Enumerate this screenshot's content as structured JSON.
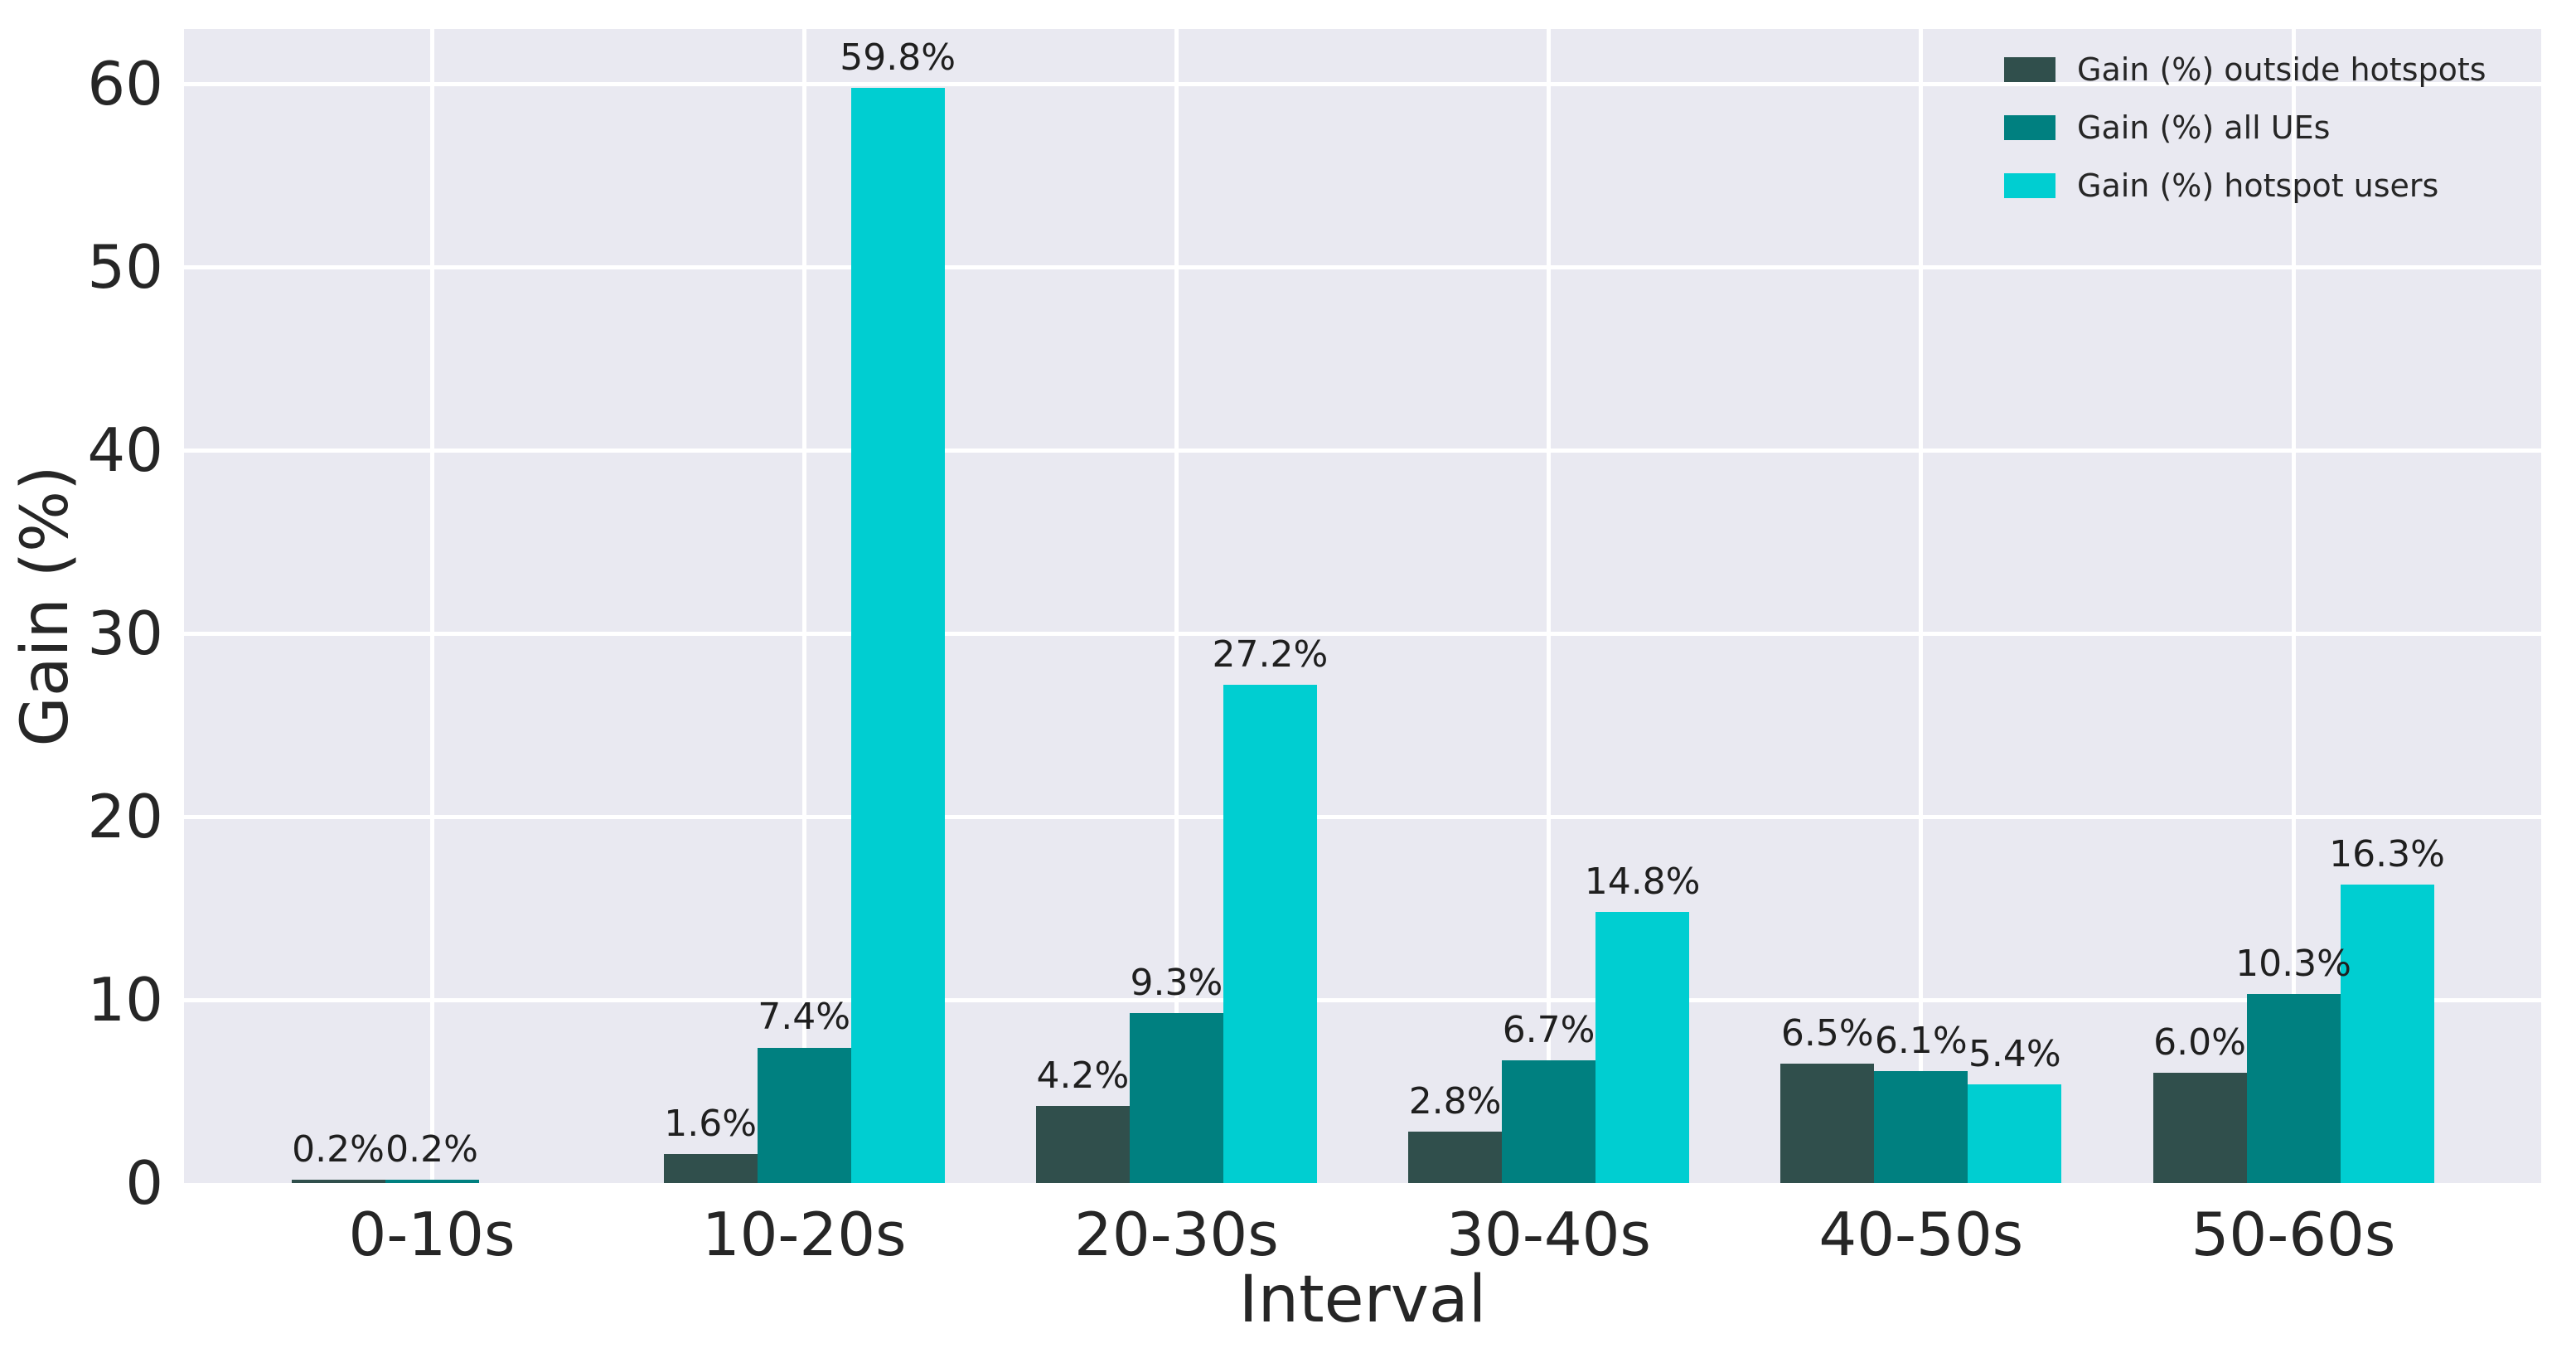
{
  "chart_data": {
    "type": "bar",
    "title": "",
    "xlabel": "Interval",
    "ylabel": "Gain (%)",
    "categories": [
      "0-10s",
      "10-20s",
      "20-30s",
      "30-40s",
      "40-50s",
      "50-60s"
    ],
    "series": [
      {
        "name": "Gain (%) outside hotspots",
        "color": "#304F4C",
        "values": [
          0.2,
          1.6,
          4.2,
          2.8,
          6.5,
          6.0
        ],
        "labels": [
          "0.2%",
          "1.6%",
          "4.2%",
          "2.8%",
          "6.5%",
          "6.0%"
        ]
      },
      {
        "name": "Gain (%) all UEs",
        "color": "#008080",
        "values": [
          0.2,
          7.4,
          9.3,
          6.7,
          6.1,
          10.3
        ],
        "labels": [
          "0.2%",
          "7.4%",
          "9.3%",
          "6.7%",
          "6.1%",
          "10.3%"
        ]
      },
      {
        "name": "Gain (%) hotspot users",
        "color": "#00CED1",
        "values": [
          null,
          59.8,
          27.2,
          14.8,
          5.4,
          16.3
        ],
        "labels": [
          null,
          "59.8%",
          "27.2%",
          "14.8%",
          "5.4%",
          "16.3%"
        ]
      }
    ],
    "yticks": [
      0,
      10,
      20,
      30,
      40,
      50,
      60
    ],
    "ylim": [
      0,
      63
    ],
    "grid": true,
    "grid_color": "#FFFFFF",
    "plot_background": "#E9E9F1",
    "text_color": "#262626",
    "legend_position": "upper right"
  }
}
